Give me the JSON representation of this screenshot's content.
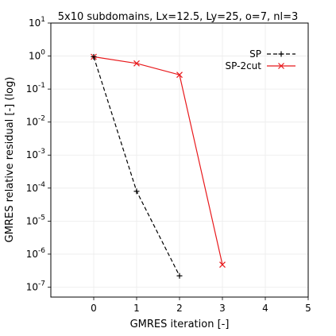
{
  "chart_data": {
    "type": "line",
    "title": "5x10 subdomains, Lx=12.5, Ly=25, o=7, nl=3",
    "xlabel": "GMRES iteration [-]",
    "ylabel": "GMRES relative residual [-] (log)",
    "xlim": [
      -1,
      5
    ],
    "ylim": [
      5e-08,
      10
    ],
    "yscale": "log",
    "grid": true,
    "legend_position": "top-right",
    "x_ticks": [
      0,
      1,
      2,
      3,
      4,
      5
    ],
    "y_ticks": [
      {
        "base": "10",
        "exp": "1"
      },
      {
        "base": "10",
        "exp": "0"
      },
      {
        "base": "10",
        "exp": "-1"
      },
      {
        "base": "10",
        "exp": "-2"
      },
      {
        "base": "10",
        "exp": "-3"
      },
      {
        "base": "10",
        "exp": "-4"
      },
      {
        "base": "10",
        "exp": "-5"
      },
      {
        "base": "10",
        "exp": "-6"
      },
      {
        "base": "10",
        "exp": "-7"
      }
    ],
    "series": [
      {
        "name": "SP",
        "color": "#000000",
        "line_style": "dashed",
        "marker": "plus",
        "x": [
          0,
          1,
          2
        ],
        "y": [
          0.95,
          8e-05,
          2.2e-07
        ]
      },
      {
        "name": "SP-2cut",
        "color": "#e8191c",
        "line_style": "solid",
        "marker": "x",
        "x": [
          0,
          1,
          2,
          3
        ],
        "y": [
          0.95,
          0.6,
          0.27,
          4.8e-07
        ]
      }
    ]
  }
}
